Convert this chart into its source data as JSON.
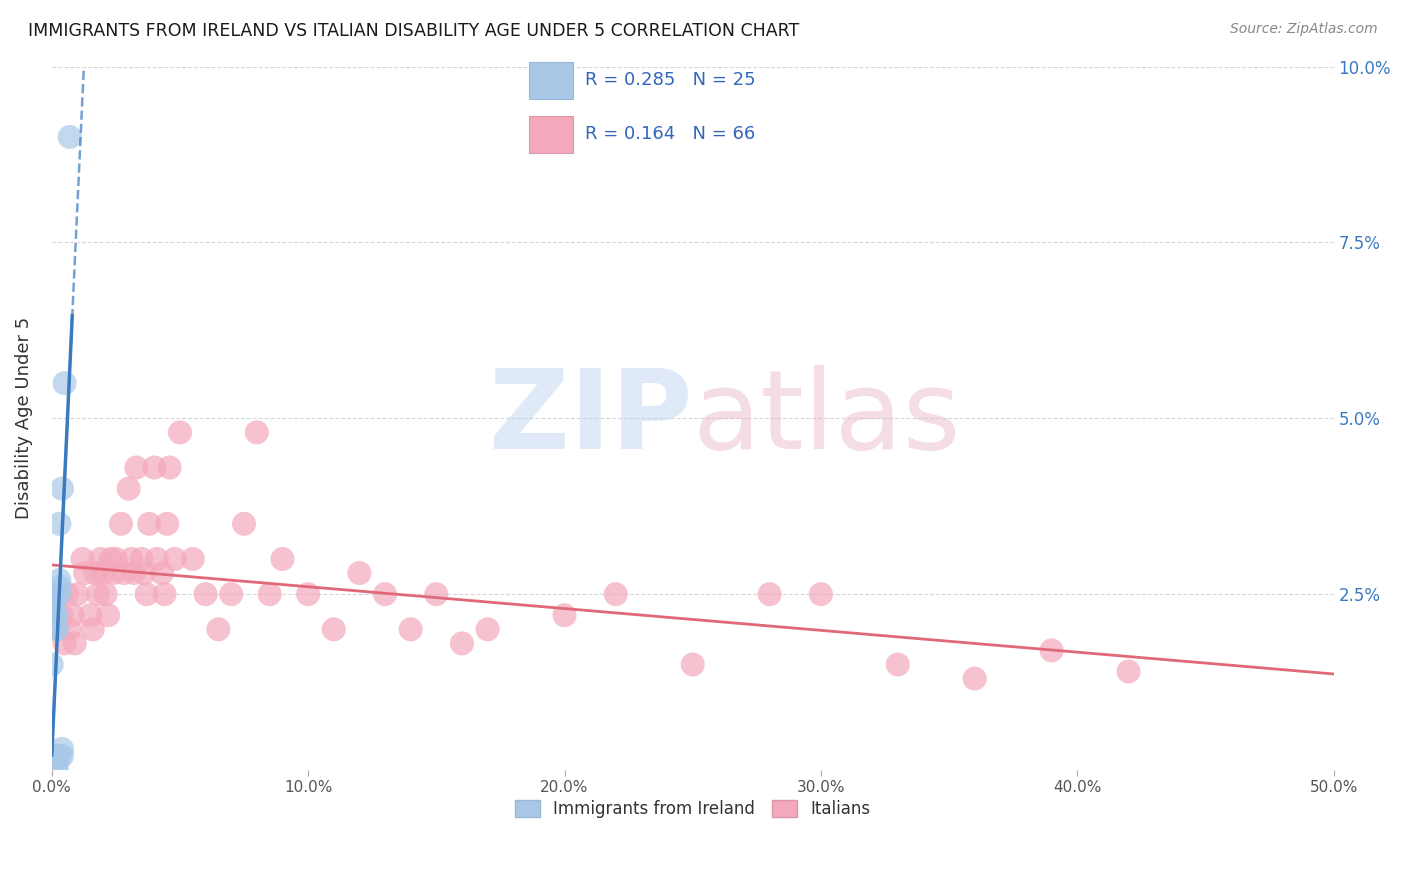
{
  "title": "IMMIGRANTS FROM IRELAND VS ITALIAN DISABILITY AGE UNDER 5 CORRELATION CHART",
  "source": "Source: ZipAtlas.com",
  "ylabel": "Disability Age Under 5",
  "xlim": [
    0.0,
    0.5
  ],
  "ylim": [
    0.0,
    0.1
  ],
  "xticks": [
    0.0,
    0.1,
    0.2,
    0.3,
    0.4,
    0.5
  ],
  "xticklabels": [
    "0.0%",
    "10.0%",
    "20.0%",
    "30.0%",
    "40.0%",
    "50.0%"
  ],
  "yticks_left": [
    0.0,
    0.025,
    0.05,
    0.075,
    0.1
  ],
  "yticklabels_left": [
    "",
    "",
    "",
    "",
    ""
  ],
  "yticks_right": [
    0.025,
    0.05,
    0.075,
    0.1
  ],
  "yticklabels_right": [
    "2.5%",
    "5.0%",
    "7.5%",
    "10.0%"
  ],
  "ireland_R": 0.285,
  "ireland_N": 25,
  "italian_R": 0.164,
  "italian_N": 66,
  "ireland_color": "#a8c8e8",
  "italian_color": "#f4a8bc",
  "ireland_line_color": "#3a7abf",
  "italian_line_color": "#e06878",
  "legend_text_color": "#3366bb",
  "tick_color": "#3a7abf",
  "ireland_x": [
    0.0,
    0.0,
    0.0,
    0.001,
    0.001,
    0.001,
    0.001,
    0.001,
    0.002,
    0.002,
    0.002,
    0.002,
    0.002,
    0.002,
    0.002,
    0.003,
    0.003,
    0.003,
    0.003,
    0.003,
    0.004,
    0.004,
    0.004,
    0.005,
    0.007
  ],
  "ireland_y": [
    0.001,
    0.002,
    0.015,
    0.02,
    0.021,
    0.022,
    0.023,
    0.025,
    0.0,
    0.001,
    0.002,
    0.002,
    0.02,
    0.022,
    0.025,
    0.002,
    0.025,
    0.026,
    0.027,
    0.035,
    0.002,
    0.003,
    0.04,
    0.055,
    0.09
  ],
  "italian_x": [
    0.001,
    0.002,
    0.003,
    0.004,
    0.005,
    0.006,
    0.007,
    0.008,
    0.009,
    0.01,
    0.012,
    0.013,
    0.015,
    0.016,
    0.017,
    0.018,
    0.019,
    0.02,
    0.021,
    0.022,
    0.023,
    0.024,
    0.025,
    0.027,
    0.028,
    0.03,
    0.031,
    0.032,
    0.033,
    0.035,
    0.036,
    0.037,
    0.038,
    0.04,
    0.041,
    0.043,
    0.044,
    0.045,
    0.046,
    0.048,
    0.05,
    0.055,
    0.06,
    0.065,
    0.07,
    0.075,
    0.08,
    0.085,
    0.09,
    0.1,
    0.11,
    0.12,
    0.13,
    0.14,
    0.15,
    0.16,
    0.17,
    0.2,
    0.22,
    0.25,
    0.28,
    0.3,
    0.33,
    0.36,
    0.39,
    0.42
  ],
  "italian_y": [
    0.022,
    0.02,
    0.025,
    0.022,
    0.018,
    0.025,
    0.02,
    0.022,
    0.018,
    0.025,
    0.03,
    0.028,
    0.022,
    0.02,
    0.028,
    0.025,
    0.03,
    0.028,
    0.025,
    0.022,
    0.03,
    0.028,
    0.03,
    0.035,
    0.028,
    0.04,
    0.03,
    0.028,
    0.043,
    0.03,
    0.028,
    0.025,
    0.035,
    0.043,
    0.03,
    0.028,
    0.025,
    0.035,
    0.043,
    0.03,
    0.048,
    0.03,
    0.025,
    0.02,
    0.025,
    0.035,
    0.048,
    0.025,
    0.03,
    0.025,
    0.02,
    0.028,
    0.025,
    0.02,
    0.025,
    0.018,
    0.02,
    0.022,
    0.025,
    0.015,
    0.025,
    0.025,
    0.015,
    0.013,
    0.017,
    0.014
  ]
}
